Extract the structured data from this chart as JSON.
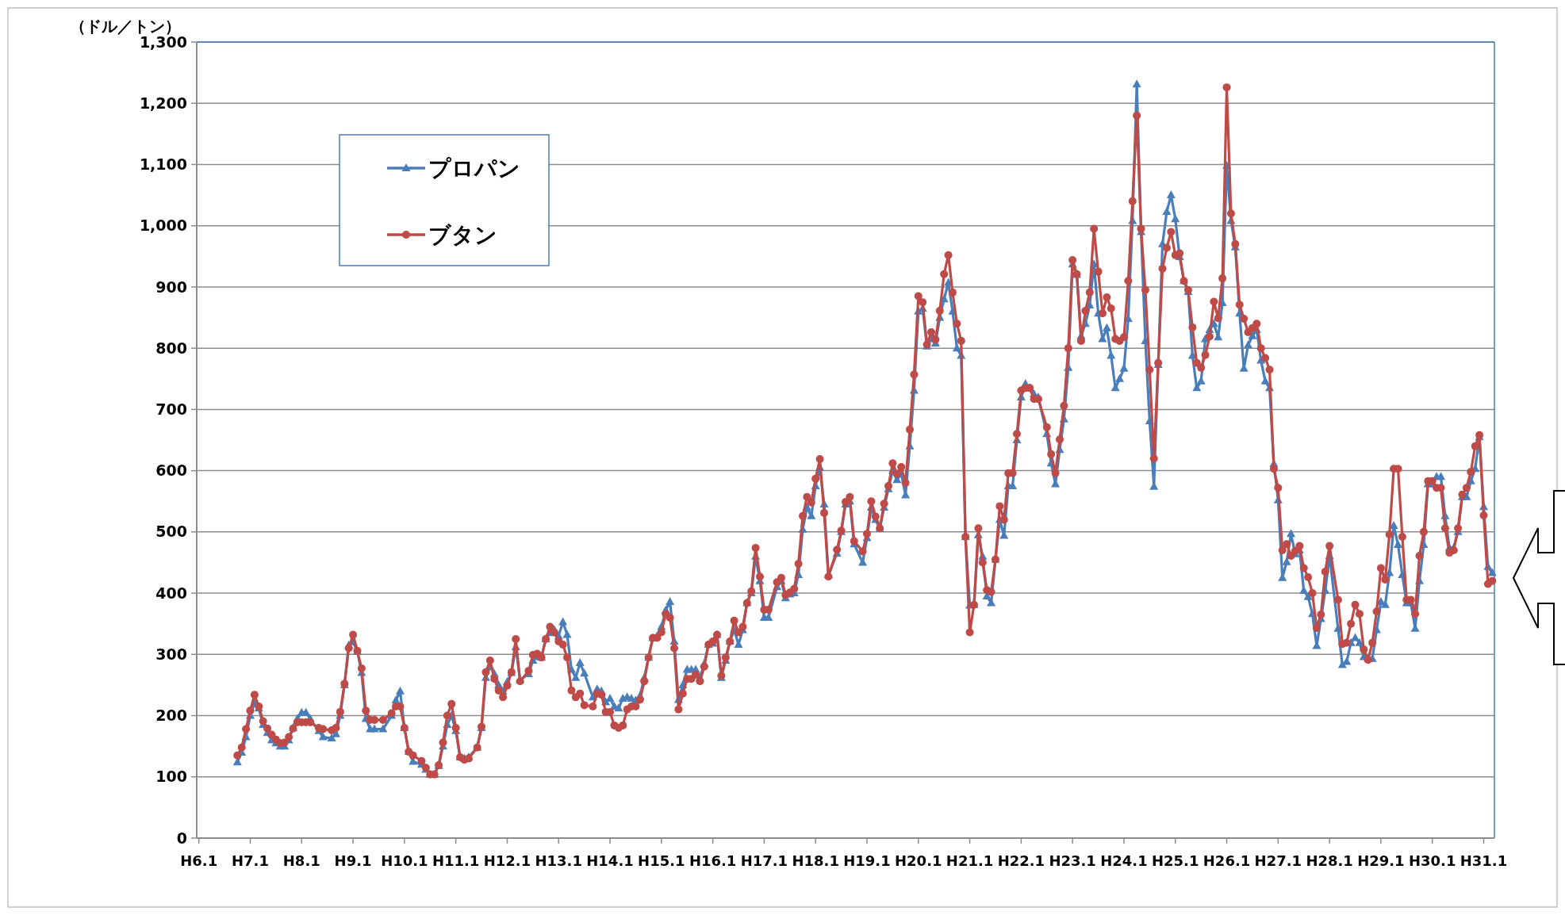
{
  "chart_data": {
    "type": "line",
    "ylabel": "（ドル／トン）",
    "categories": [
      "H6.1",
      null,
      null,
      null,
      null,
      null,
      null,
      null,
      null,
      null,
      null,
      null,
      "H7.1",
      null,
      null,
      null,
      null,
      null,
      null,
      null,
      null,
      null,
      null,
      null,
      "H8.1",
      null,
      null,
      null,
      null,
      null,
      null,
      null,
      null,
      null,
      null,
      null,
      "H9.1",
      null,
      null,
      null,
      null,
      null,
      null,
      null,
      null,
      null,
      null,
      null,
      "H10.1",
      null,
      null,
      null,
      null,
      null,
      null,
      null,
      null,
      null,
      null,
      null,
      "H11.1",
      null,
      null,
      null,
      null,
      null,
      null,
      null,
      null,
      null,
      null,
      null,
      "H12.1",
      null,
      null,
      null,
      null,
      null,
      null,
      null,
      null,
      null,
      null,
      null,
      "H13.1",
      null,
      null,
      null,
      null,
      null,
      null,
      null,
      null,
      null,
      null,
      null,
      "H14.1",
      null,
      null,
      null,
      null,
      null,
      null,
      null,
      null,
      null,
      null,
      null,
      "H15.1",
      null,
      null,
      null,
      null,
      null,
      null,
      null,
      null,
      null,
      null,
      null,
      "H16.1",
      null,
      null,
      null,
      null,
      null,
      null,
      null,
      null,
      null,
      null,
      null,
      "H17.1",
      null,
      null,
      null,
      null,
      null,
      null,
      null,
      null,
      null,
      null,
      null,
      "H18.1",
      null,
      null,
      null,
      null,
      null,
      null,
      null,
      null,
      null,
      null,
      null,
      "H19.1",
      null,
      null,
      null,
      null,
      null,
      null,
      null,
      null,
      null,
      null,
      null,
      "H20.1",
      null,
      null,
      null,
      null,
      null,
      null,
      null,
      null,
      null,
      null,
      null,
      "H21.1",
      null,
      null,
      null,
      null,
      null,
      null,
      null,
      null,
      null,
      null,
      null,
      "H22.1",
      null,
      null,
      null,
      null,
      null,
      null,
      null,
      null,
      null,
      null,
      null,
      "H23.1",
      null,
      null,
      null,
      null,
      null,
      null,
      null,
      null,
      null,
      null,
      null,
      "H24.1",
      null,
      null,
      null,
      null,
      null,
      null,
      null,
      null,
      null,
      null,
      null,
      "H25.1",
      null,
      null,
      null,
      null,
      null,
      null,
      null,
      null,
      null,
      null,
      null,
      "H26.1",
      null,
      null,
      null,
      null,
      null,
      null,
      null,
      null,
      null,
      null,
      null,
      "H27.1",
      null,
      null,
      null,
      null,
      null,
      null,
      null,
      null,
      null,
      null,
      null,
      "H28.1",
      null,
      null,
      null,
      null,
      null,
      null,
      null,
      null,
      null,
      null,
      null,
      "H29.1",
      null,
      null,
      null,
      null,
      null,
      null,
      null,
      null,
      null,
      null,
      null,
      "H30.1",
      null,
      null,
      null,
      null,
      null,
      null,
      null,
      null,
      null,
      null,
      null,
      "H31.1",
      null,
      null
    ],
    "series": [
      {
        "name": "プロパン",
        "color": "#4a7ebb",
        "marker": "triangle",
        "values": [
          null,
          null,
          null,
          null,
          null,
          null,
          null,
          null,
          null,
          124,
          140,
          165,
          200,
          220,
          212,
          185,
          172,
          160,
          155,
          150,
          150,
          160,
          180,
          195,
          205,
          205,
          195,
          null,
          175,
          165,
          null,
          163,
          170,
          200,
          250,
          315,
          320,
          305,
          270,
          195,
          178,
          178,
          null,
          178,
          null,
          200,
          225,
          240,
          180,
          141,
          125,
          null,
          120,
          112,
          104,
          104,
          118,
          150,
          185,
          200,
          175,
          132,
          130,
          132,
          null,
          148,
          180,
          262,
          280,
          268,
          250,
          240,
          255,
          270,
          312,
          258,
          null,
          268,
          290,
          296,
          295,
          325,
          335,
          340,
          330,
          353,
          332,
          275,
          262,
          286,
          269,
          null,
          230,
          243,
          240,
          222,
          228,
          215,
          212,
          228,
          230,
          228,
          225,
          232,
          262,
          295,
          327,
          330,
          345,
          372,
          386,
          321,
          226,
          250,
          275,
          275,
          275,
          262,
          285,
          316,
          318,
          332,
          262,
          290,
          321,
          340,
          316,
          340,
          384,
          400,
          460,
          420,
          360,
          360,
          null,
          410,
          420,
          392,
          398,
          400,
          430,
          504,
          540,
          526,
          575,
          605,
          545,
          430,
          null,
          465,
          500,
          545,
          550,
          480,
          null,
          450,
          490,
          540,
          520,
          505,
          540,
          570,
          600,
          585,
          595,
          560,
          640,
          731,
          860,
          865,
          803,
          815,
          808,
          850,
          880,
          907,
          860,
          800,
          788,
          492,
          380,
          381,
          495,
          460,
          395,
          384,
          455,
          520,
          494,
          575,
          575,
          650,
          720,
          742,
          735,
          725,
          720,
          null,
          660,
          612,
          578,
          634,
          684,
          768,
          937,
          920,
          820,
          840,
          870,
          937,
          857,
          815,
          833,
          788,
          735,
          750,
          767,
          848,
          1008,
          1231,
          990,
          812,
          681,
          574,
          773,
          970,
          1023,
          1050,
          1011,
          949,
          910,
          892,
          788,
          735,
          746,
          815,
          830,
          840,
          818,
          874,
          1098,
          1008,
          965,
          857,
          767,
          805,
          820,
          830,
          780,
          746,
          735,
          611,
          552,
          425,
          451,
          497,
          464,
          470,
          404,
          394,
          366,
          314,
          358,
          404,
          461,
          null,
          342,
          283,
          288,
          319,
          327,
          319,
          296,
          293,
          293,
          340,
          386,
          381,
          433,
          510,
          479,
          430,
          384,
          384,
          342,
          420,
          479,
          578,
          578,
          590,
          590,
          526,
          474,
          474,
          500,
          557,
          557,
          583,
          603,
          655,
          541,
          443,
          433
        ]
      },
      {
        "name": "ブタン",
        "color": "#be4b48",
        "marker": "circle",
        "values": [
          null,
          null,
          null,
          null,
          null,
          null,
          null,
          null,
          null,
          135,
          148,
          178,
          208,
          234,
          215,
          191,
          179,
          169,
          161,
          155,
          156,
          165,
          179,
          189,
          189,
          189,
          189,
          null,
          180,
          178,
          null,
          176,
          180,
          206,
          252,
          310,
          332,
          306,
          277,
          208,
          193,
          193,
          null,
          193,
          null,
          204,
          215,
          215,
          180,
          141,
          135,
          null,
          126,
          115,
          104,
          104,
          119,
          156,
          200,
          219,
          180,
          132,
          128,
          130,
          null,
          148,
          182,
          271,
          290,
          260,
          241,
          230,
          249,
          271,
          325,
          256,
          null,
          273,
          299,
          301,
          295,
          325,
          345,
          336,
          321,
          316,
          295,
          241,
          230,
          236,
          217,
          null,
          215,
          236,
          234,
          206,
          206,
          184,
          180,
          184,
          210,
          215,
          215,
          226,
          256,
          295,
          327,
          327,
          336,
          366,
          360,
          310,
          210,
          236,
          260,
          260,
          267,
          256,
          280,
          316,
          321,
          332,
          265,
          295,
          321,
          355,
          336,
          345,
          384,
          403,
          474,
          427,
          373,
          373,
          null,
          418,
          425,
          397,
          401,
          407,
          448,
          526,
          557,
          548,
          587,
          619,
          531,
          427,
          null,
          471,
          502,
          549,
          557,
          485,
          null,
          468,
          497,
          550,
          525,
          506,
          546,
          575,
          612,
          595,
          606,
          580,
          667,
          757,
          885,
          875,
          806,
          826,
          814,
          861,
          921,
          952,
          891,
          840,
          812,
          492,
          336,
          381,
          506,
          450,
          405,
          402,
          455,
          542,
          520,
          596,
          596,
          660,
          731,
          735,
          735,
          717,
          717,
          null,
          671,
          627,
          596,
          651,
          706,
          800,
          944,
          921,
          812,
          861,
          891,
          995,
          925,
          857,
          883,
          865,
          815,
          812,
          818,
          910,
          1040,
          1180,
          995,
          895,
          765,
          620,
          776,
          930,
          964,
          990,
          952,
          955,
          910,
          895,
          834,
          776,
          768,
          789,
          819,
          876,
          849,
          914,
          1226,
          1020,
          970,
          871,
          848,
          826,
          833,
          840,
          800,
          784,
          765,
          603,
          572,
          470,
          480,
          461,
          469,
          477,
          441,
          426,
          400,
          343,
          365,
          435,
          477,
          null,
          389,
          317,
          319,
          350,
          381,
          366,
          308,
          291,
          319,
          370,
          441,
          422,
          496,
          603,
          603,
          492,
          389,
          389,
          366,
          461,
          500,
          583,
          583,
          572,
          572,
          506,
          466,
          470,
          506,
          561,
          572,
          598,
          640,
          658,
          527,
          415,
          420
        ]
      }
    ],
    "ylim": [
      0,
      1300
    ],
    "yticks": [
      0,
      100,
      200,
      300,
      400,
      500,
      600,
      700,
      800,
      900,
      {
        "value": 1000,
        "label": "1,000"
      },
      {
        "value": 1100,
        "label": "1,100"
      },
      {
        "value": 1200,
        "label": "1,200"
      },
      {
        "value": 1300,
        "label": "1,300"
      }
    ],
    "grid": "y",
    "legend": "top left",
    "line_style": "solid"
  }
}
